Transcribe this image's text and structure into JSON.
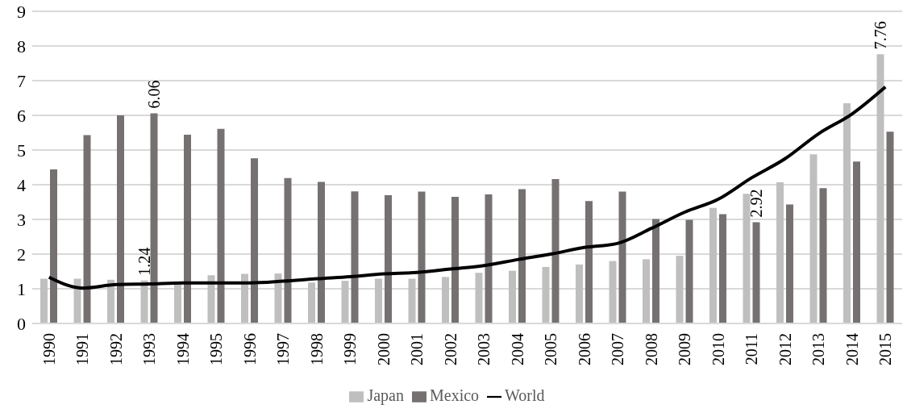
{
  "chart_data": {
    "type": "bar",
    "categories": [
      "1990",
      "1991",
      "1992",
      "1993",
      "1994",
      "1995",
      "1996",
      "1997",
      "1998",
      "1999",
      "2000",
      "2001",
      "2002",
      "2003",
      "2004",
      "2005",
      "2006",
      "2007",
      "2008",
      "2009",
      "2010",
      "2011",
      "2012",
      "2013",
      "2014",
      "2015"
    ],
    "series": [
      {
        "name": "Japan",
        "color": "#bfbfbf",
        "values": [
          1.29,
          1.29,
          1.26,
          1.24,
          1.2,
          1.39,
          1.43,
          1.44,
          1.18,
          1.23,
          1.29,
          1.29,
          1.34,
          1.46,
          1.52,
          1.63,
          1.7,
          1.8,
          1.85,
          1.95,
          3.33,
          3.74,
          4.07,
          4.88,
          6.35,
          7.76
        ],
        "value_labels": [
          null,
          null,
          null,
          "1.24",
          null,
          null,
          null,
          null,
          null,
          null,
          null,
          null,
          null,
          null,
          null,
          null,
          null,
          null,
          null,
          null,
          null,
          null,
          null,
          null,
          null,
          "7.76"
        ]
      },
      {
        "name": "Mexico",
        "color": "#767171",
        "values": [
          4.44,
          5.43,
          6.0,
          6.06,
          5.44,
          5.61,
          4.76,
          4.19,
          4.08,
          3.81,
          3.7,
          3.8,
          3.65,
          3.72,
          3.87,
          4.16,
          3.53,
          3.8,
          3.01,
          2.99,
          3.15,
          2.92,
          3.43,
          3.9,
          4.67,
          5.53
        ],
        "value_labels": [
          null,
          null,
          null,
          "6.06",
          null,
          null,
          null,
          null,
          null,
          null,
          null,
          null,
          null,
          null,
          null,
          null,
          null,
          null,
          null,
          null,
          null,
          "2.92",
          null,
          null,
          null,
          null
        ]
      },
      {
        "name": "World",
        "type": "line",
        "color": "#000000",
        "values": [
          1.33,
          1.02,
          1.12,
          1.14,
          1.17,
          1.17,
          1.17,
          1.22,
          1.29,
          1.35,
          1.43,
          1.47,
          1.57,
          1.67,
          1.84,
          2.0,
          2.19,
          2.31,
          2.74,
          3.21,
          3.58,
          4.2,
          4.75,
          5.47,
          6.04,
          6.82
        ]
      }
    ],
    "ylim": [
      0,
      9
    ],
    "yticks": [
      0,
      1,
      2,
      3,
      4,
      5,
      6,
      7,
      8,
      9
    ],
    "grid": "y",
    "legend": "bottom"
  }
}
